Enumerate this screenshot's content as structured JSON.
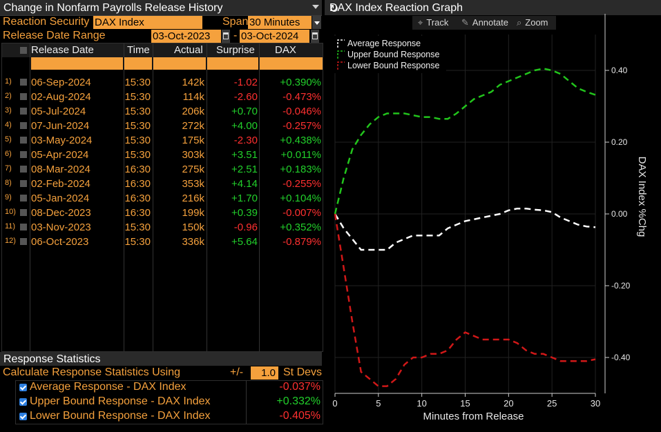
{
  "left": {
    "title": "Change in Nonfarm Payrolls Release History",
    "reaction_security_label": "Reaction Security",
    "reaction_security_value": "DAX Index",
    "span_label": "Span",
    "span_value": "30 Minutes",
    "release_range_label": "Release Date Range",
    "range_from": "03-Oct-2023",
    "range_sep": "-",
    "range_to": "03-Oct-2024",
    "columns": [
      "Release Date",
      "Time",
      "Actual",
      "Surprise",
      "DAX %Chg"
    ],
    "rows": [
      {
        "idx": "1)",
        "date": "06-Sep-2024",
        "time": "15:30",
        "actual": "142k",
        "surprise": "-1.02",
        "chg": "+0.390%"
      },
      {
        "idx": "2)",
        "date": "02-Aug-2024",
        "time": "15:30",
        "actual": "114k",
        "surprise": "-2.60",
        "chg": "-0.473%"
      },
      {
        "idx": "3)",
        "date": "05-Jul-2024",
        "time": "15:30",
        "actual": "206k",
        "surprise": "+0.70",
        "chg": "-0.046%"
      },
      {
        "idx": "4)",
        "date": "07-Jun-2024",
        "time": "15:30",
        "actual": "272k",
        "surprise": "+4.00",
        "chg": "-0.257%"
      },
      {
        "idx": "5)",
        "date": "03-May-2024",
        "time": "15:30",
        "actual": "175k",
        "surprise": "-2.30",
        "chg": "+0.438%"
      },
      {
        "idx": "6)",
        "date": "05-Apr-2024",
        "time": "15:30",
        "actual": "303k",
        "surprise": "+3.51",
        "chg": "+0.011%"
      },
      {
        "idx": "7)",
        "date": "08-Mar-2024",
        "time": "16:30",
        "actual": "275k",
        "surprise": "+2.51",
        "chg": "+0.183%"
      },
      {
        "idx": "8)",
        "date": "02-Feb-2024",
        "time": "16:30",
        "actual": "353k",
        "surprise": "+4.14",
        "chg": "-0.255%"
      },
      {
        "idx": "9)",
        "date": "05-Jan-2024",
        "time": "16:30",
        "actual": "216k",
        "surprise": "+1.70",
        "chg": "+0.104%"
      },
      {
        "idx": "10)",
        "date": "08-Dec-2023",
        "time": "16:30",
        "actual": "199k",
        "surprise": "+0.39",
        "chg": "-0.007%"
      },
      {
        "idx": "11)",
        "date": "03-Nov-2023",
        "time": "15:30",
        "actual": "150k",
        "surprise": "-0.96",
        "chg": "+0.352%"
      },
      {
        "idx": "12)",
        "date": "06-Oct-2023",
        "time": "15:30",
        "actual": "336k",
        "surprise": "+5.64",
        "chg": "-0.879%"
      }
    ],
    "stats": {
      "title": "Response Statistics",
      "calc_label": "Calculate Response Statistics Using",
      "pm": "+/-",
      "stdev_value": "1.0",
      "stdev_label": "St Devs",
      "items": [
        {
          "label": "Average Response - DAX Index",
          "value": "-0.037%"
        },
        {
          "label": "Upper Bound Response - DAX Index",
          "value": "+0.332%"
        },
        {
          "label": "Lower Bound Response - DAX Index",
          "value": "-0.405%"
        }
      ]
    }
  },
  "right": {
    "title": "DAX Index Reaction Graph",
    "toolbar": {
      "track": "Track",
      "annotate": "Annotate",
      "zoom": "Zoom"
    },
    "icons": {
      "refresh": "refresh-icon",
      "track": "crosshair-icon",
      "annotate": "pencil-icon",
      "zoom": "magnifier-icon"
    }
  },
  "colors": {
    "orange": "#f5a13d",
    "positive": "#22d02b",
    "negative": "#ff3030",
    "upper": "#22c41c",
    "lower": "#d01818",
    "average": "#ffffff"
  },
  "chart_data": {
    "type": "line",
    "xlabel": "Minutes from Release",
    "ylabel": "DAX Index %Chg",
    "xlim": [
      0,
      30
    ],
    "ylim": [
      -0.5,
      0.5
    ],
    "xticks": [
      0,
      5,
      10,
      15,
      20,
      25,
      30
    ],
    "yticks": [
      0.4,
      0.2,
      0.0,
      -0.2,
      -0.4
    ],
    "ytick_labels": [
      "0.40",
      "0.20",
      "0.00",
      "-0.20",
      "-0.40"
    ],
    "legend_position": "top-left",
    "grid": true,
    "x": [
      0,
      1,
      2,
      3,
      4,
      5,
      6,
      7,
      8,
      9,
      10,
      11,
      12,
      13,
      14,
      15,
      16,
      17,
      18,
      19,
      20,
      21,
      22,
      23,
      24,
      25,
      26,
      27,
      28,
      29,
      30
    ],
    "series": [
      {
        "name": "Average Response",
        "color": "#ffffff",
        "values": [
          0.0,
          -0.04,
          -0.07,
          -0.1,
          -0.1,
          -0.1,
          -0.1,
          -0.08,
          -0.07,
          -0.06,
          -0.06,
          -0.06,
          -0.06,
          -0.04,
          -0.03,
          -0.02,
          -0.015,
          -0.01,
          -0.005,
          0.0,
          0.01,
          0.015,
          0.015,
          0.012,
          0.01,
          0.005,
          -0.01,
          -0.02,
          -0.03,
          -0.035,
          -0.037
        ]
      },
      {
        "name": "Upper Bound Response",
        "color": "#22c41c",
        "values": [
          0.0,
          0.1,
          0.18,
          0.22,
          0.25,
          0.27,
          0.28,
          0.28,
          0.28,
          0.275,
          0.27,
          0.27,
          0.265,
          0.265,
          0.28,
          0.3,
          0.32,
          0.33,
          0.34,
          0.36,
          0.37,
          0.38,
          0.39,
          0.4,
          0.405,
          0.4,
          0.39,
          0.37,
          0.35,
          0.34,
          0.332
        ]
      },
      {
        "name": "Lower Bound Response",
        "color": "#d01818",
        "values": [
          0.0,
          -0.15,
          -0.3,
          -0.44,
          -0.46,
          -0.48,
          -0.48,
          -0.46,
          -0.42,
          -0.4,
          -0.4,
          -0.39,
          -0.39,
          -0.38,
          -0.35,
          -0.33,
          -0.34,
          -0.35,
          -0.35,
          -0.35,
          -0.35,
          -0.36,
          -0.38,
          -0.39,
          -0.39,
          -0.4,
          -0.41,
          -0.41,
          -0.41,
          -0.41,
          -0.405
        ]
      }
    ]
  }
}
